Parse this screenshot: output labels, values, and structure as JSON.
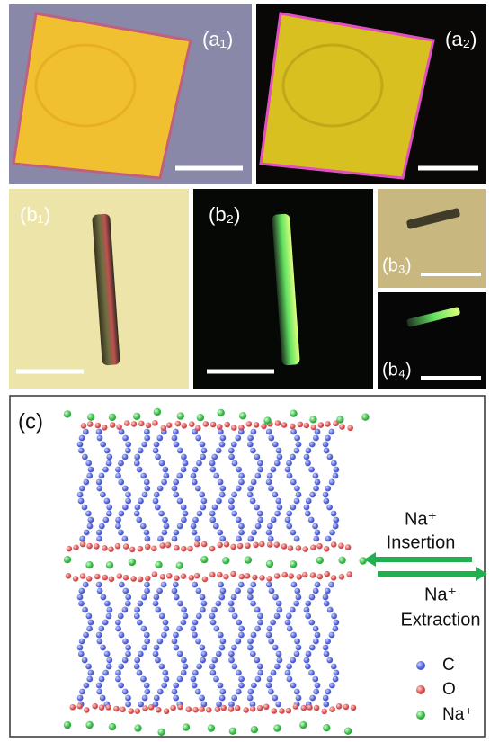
{
  "panels": {
    "a1": "(a₁)",
    "a2": "(a₂)",
    "b1": "(b₁)",
    "b2": "(b₂)",
    "b3": "(b₃)",
    "b4": "(b₄)",
    "c": "(c)"
  },
  "insertion": {
    "ion": "Na⁺",
    "text": "Insertion"
  },
  "extraction": {
    "ion": "Na⁺",
    "text": "Extraction"
  },
  "legend": [
    "C",
    "O",
    "Na⁺"
  ]
}
